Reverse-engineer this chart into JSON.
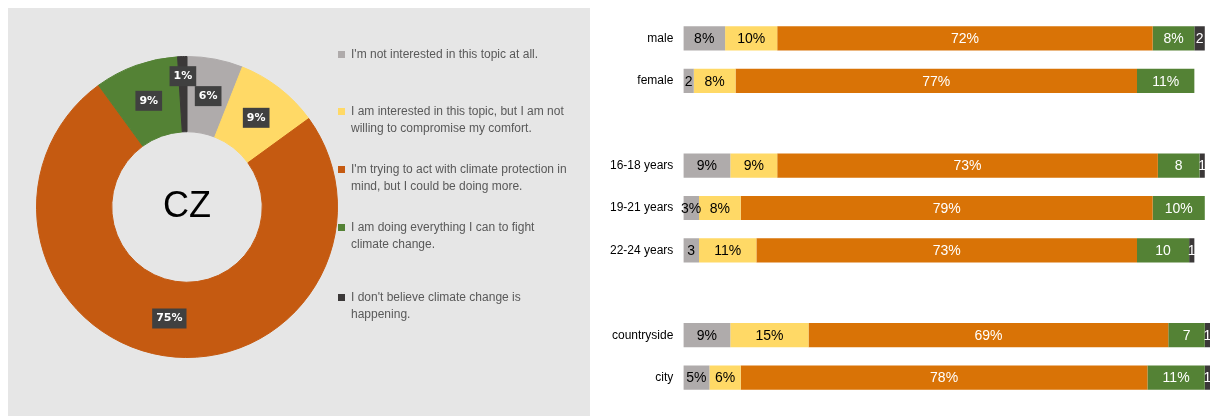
{
  "chart_data": [
    {
      "type": "donut",
      "title": "CZ",
      "legend": "right",
      "categories": [
        "I'm not interested in this topic at all.",
        "I am interested in this topic, but I am not willing to compromise my comfort.",
        "I'm trying to act with climate protection in mind, but I could be doing more.",
        "I am doing everything I can to fight climate change.",
        "I don't believe climate change is happening."
      ],
      "values": [
        6,
        9,
        75,
        9,
        1
      ],
      "colors": [
        "#afabab",
        "#ffd966",
        "#c55a11",
        "#548235",
        "#3b3838"
      ],
      "value_labels": [
        "6%",
        "9%",
        "75%",
        "9%",
        "1%"
      ]
    },
    {
      "type": "bar",
      "orientation": "horizontal",
      "stacked": true,
      "grid": false,
      "tick_labels": "y",
      "legend": false,
      "xlim": [
        0,
        101
      ],
      "categories": [
        "male",
        "female",
        null,
        "16-18 years",
        "19-21 years",
        "22-24 years",
        null,
        "countryside",
        "city"
      ],
      "series": [
        {
          "color": "#afabab",
          "values": [
            8,
            2,
            null,
            9,
            3,
            3,
            null,
            9,
            5
          ],
          "value_labels": [
            "8%",
            "2",
            null,
            "9%",
            "3%",
            "3",
            null,
            "9%",
            "5%"
          ]
        },
        {
          "color": "#ffd966",
          "values": [
            10,
            8,
            null,
            9,
            8,
            11,
            null,
            15,
            6
          ],
          "value_labels": [
            "10%",
            "8%",
            null,
            "9%",
            "8%",
            "11%",
            null,
            "15%",
            "6%"
          ]
        },
        {
          "color": "#d97306",
          "values": [
            72,
            77,
            null,
            73,
            79,
            73,
            null,
            69,
            78
          ],
          "value_labels": [
            "72%",
            "77%",
            null,
            "73%",
            "79%",
            "73%",
            null,
            "69%",
            "78%"
          ]
        },
        {
          "color": "#548235",
          "values": [
            8,
            11,
            null,
            8,
            10,
            10,
            null,
            7,
            11
          ],
          "value_labels": [
            "8%",
            "11%",
            null,
            "8",
            "10%",
            "10",
            null,
            "7",
            "11%"
          ]
        },
        {
          "color": "#3b3838",
          "values": [
            2,
            null,
            null,
            1,
            null,
            1,
            null,
            1,
            1
          ],
          "value_labels": [
            "2",
            null,
            null,
            "1",
            null,
            "1",
            null,
            "1",
            "1"
          ]
        }
      ]
    }
  ]
}
